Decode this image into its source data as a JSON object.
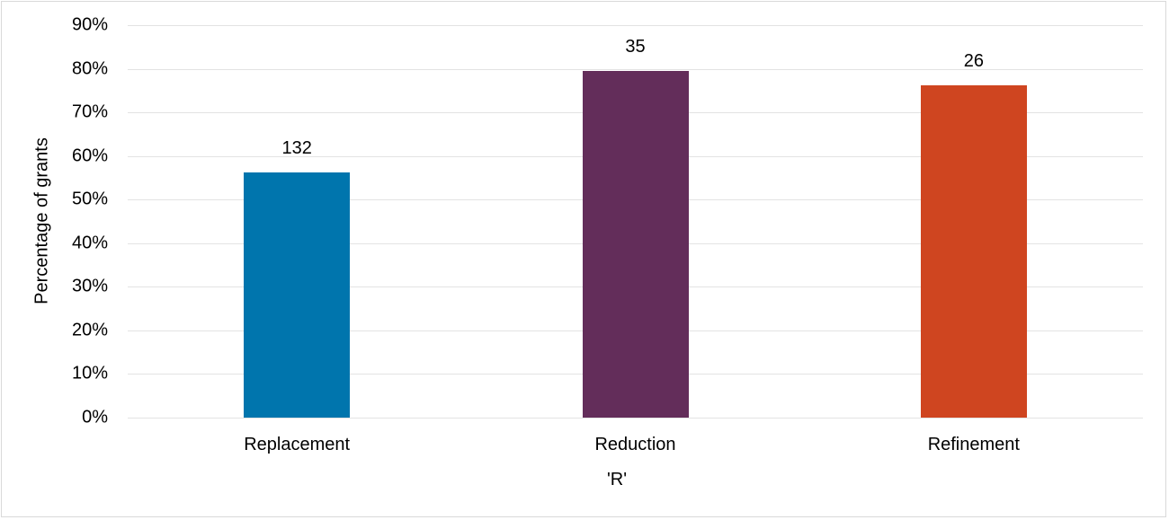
{
  "chart_data": {
    "type": "bar",
    "title": "",
    "xlabel": "'R'",
    "ylabel": "Percentage of grants",
    "categories": [
      "Replacement",
      "Reduction",
      "Refinement"
    ],
    "values": [
      56.2,
      79.4,
      76.3
    ],
    "value_unit": "%",
    "data_labels": [
      "132",
      "35",
      "26"
    ],
    "colors": [
      "#0075ad",
      "#632d5a",
      "#cf4520"
    ],
    "ylim": [
      0,
      90
    ],
    "yticks": [
      "0%",
      "10%",
      "20%",
      "30%",
      "40%",
      "50%",
      "60%",
      "70%",
      "80%",
      "90%"
    ],
    "grid": true,
    "legend": "none"
  }
}
